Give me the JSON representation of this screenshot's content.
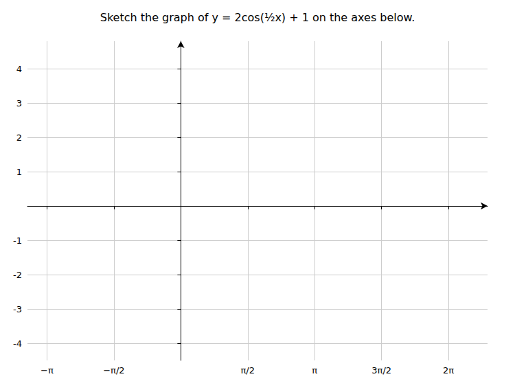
{
  "chart_data": {
    "type": "line",
    "title": "Sketch the graph of y = 2cos(½x) + 1 on the axes below.",
    "xlim": [
      -3.6,
      7.2
    ],
    "ylim": [
      -4.5,
      4.8
    ],
    "xticks": [
      {
        "value": -3.14159265,
        "label": "−π"
      },
      {
        "value": -1.5707963,
        "label": "−π/2"
      },
      {
        "value": 1.5707963,
        "label": "π/2"
      },
      {
        "value": 3.14159265,
        "label": "π"
      },
      {
        "value": 4.71238898,
        "label": "3π/2"
      },
      {
        "value": 6.28318531,
        "label": "2π"
      }
    ],
    "yticks": [
      -4,
      -3,
      -2,
      -1,
      1,
      2,
      3,
      4
    ],
    "grid": true
  }
}
